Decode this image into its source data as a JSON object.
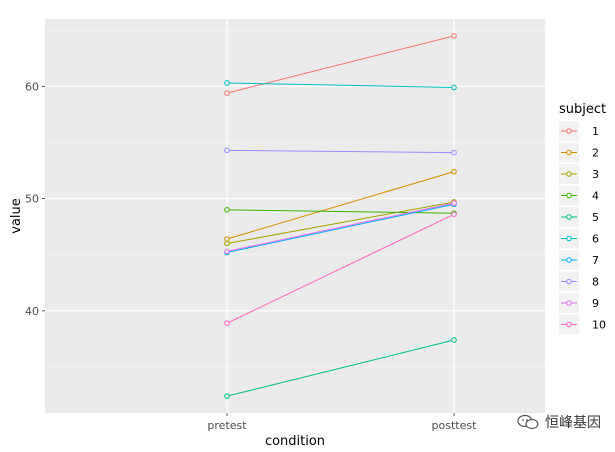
{
  "chart_data": {
    "type": "line",
    "xlabel": "condition",
    "ylabel": "value",
    "categories": [
      "pretest",
      "posttest"
    ],
    "yticks": [
      40,
      50,
      60
    ],
    "ylim": [
      30.9,
      66.0
    ],
    "grid": true,
    "legend": {
      "title": "subject",
      "placement": "right"
    },
    "series": [
      {
        "name": "1",
        "color": "#F8766D",
        "values": [
          59.4,
          64.5
        ]
      },
      {
        "name": "2",
        "color": "#D89000",
        "values": [
          46.4,
          52.4
        ]
      },
      {
        "name": "3",
        "color": "#A3A500",
        "values": [
          46.0,
          49.7
        ]
      },
      {
        "name": "4",
        "color": "#39B600",
        "values": [
          49.0,
          48.7
        ]
      },
      {
        "name": "5",
        "color": "#00BF7D",
        "values": [
          32.4,
          37.4
        ]
      },
      {
        "name": "6",
        "color": "#00BFC4",
        "values": [
          60.3,
          59.9
        ]
      },
      {
        "name": "7",
        "color": "#00B0F6",
        "values": [
          45.2,
          49.5
        ]
      },
      {
        "name": "8",
        "color": "#9590FF",
        "values": [
          54.3,
          54.1
        ]
      },
      {
        "name": "9",
        "color": "#E76BF3",
        "values": [
          45.3,
          49.6
        ]
      },
      {
        "name": "10",
        "color": "#FF62BC",
        "values": [
          38.9,
          48.6
        ]
      }
    ]
  },
  "watermark": {
    "text": "恒峰基因",
    "icon": "wechat-icon"
  }
}
